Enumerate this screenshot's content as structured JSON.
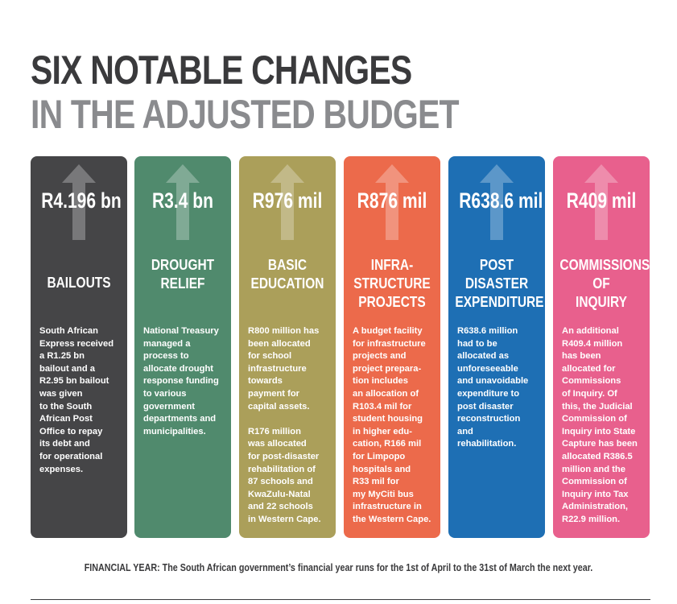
{
  "title": {
    "line1": "SIX NOTABLE CHANGES",
    "line2": "IN THE ADJUSTED BUDGET"
  },
  "colors": {
    "title_dark": "#3a3a3c",
    "title_grey": "#8a8b8e",
    "bailouts": "#454547",
    "drought": "#508a6d",
    "education": "#ab9f5a",
    "infrastructure": "#ec6a4b",
    "disaster": "#1e6fb4",
    "commissions": "#e8608d"
  },
  "columns": [
    {
      "icon": "up-arrow-icon",
      "amount": "R4.196 bn",
      "heading": "BAILOUTS",
      "body": "South African\nExpress received\na R1.25 bn\nbailout and a\nR2.95 bn bailout\nwas given\nto the South\nAfrican Post\nOffice to repay\nits debt and\nfor operational\nexpenses."
    },
    {
      "icon": "up-arrow-icon",
      "amount": "R3.4 bn",
      "heading": "DROUGHT\nRELIEF",
      "body": "National Treasury\nmanaged a\nprocess to\nallocate drought\nresponse funding\nto various\ngovernment\ndepartments and\nmunicipalities."
    },
    {
      "icon": "up-arrow-icon",
      "amount": "R976 mil",
      "heading": "BASIC\nEDUCATION",
      "body": "R800 million has\nbeen allocated\nfor school\ninfrastructure\ntowards\npayment for\ncapital assets.\n\nR176 million\nwas allocated\nfor post-disaster\nrehabilitation of\n87 schools and\nKwaZulu-Natal\nand 22 schools\nin Western Cape."
    },
    {
      "icon": "up-arrow-icon",
      "amount": "R876 mil",
      "heading": "INFRA-\nSTRUCTURE\nPROJECTS",
      "body": "A budget facility\nfor infrastructure\nprojects and\nproject prepara-\ntion includes\nan allocation of\nR103.4 mil for\nstudent housing\nin higher edu-\ncation,  R166 mil\nfor Limpopo\nhospitals and\nR33 mil for\nmy MyCiti bus\ninfrastructure in\nthe Western Cape."
    },
    {
      "icon": "up-arrow-icon",
      "amount": "R638.6 mil",
      "heading": "POST\nDISASTER\nEXPENDITURE",
      "body": "R638.6 million\nhad to be\nallocated as\nunforeseeable\nand unavoidable\nexpenditure to\npost disaster\nreconstruction\nand\nrehabilitation."
    },
    {
      "icon": "up-arrow-icon",
      "amount": "R409 mil",
      "heading": "COMMISSIONS\nOF\nINQUIRY",
      "body": "An additional\nR409.4 million\nhas been\nallocated for\nCommissions\nof Inquiry. Of\nthis, the Judicial\nCommission of\nInquiry into State\nCapture has been\nallocated R386.5\nmillion and the\nCommission of\nInquiry into Tax\nAdministration,\nR22.9 million."
    }
  ],
  "footnote": {
    "label": "FINANCIAL YEAR:",
    "text": " The South African government’s financial year runs for the 1st of April to the 31st of March the next year."
  }
}
